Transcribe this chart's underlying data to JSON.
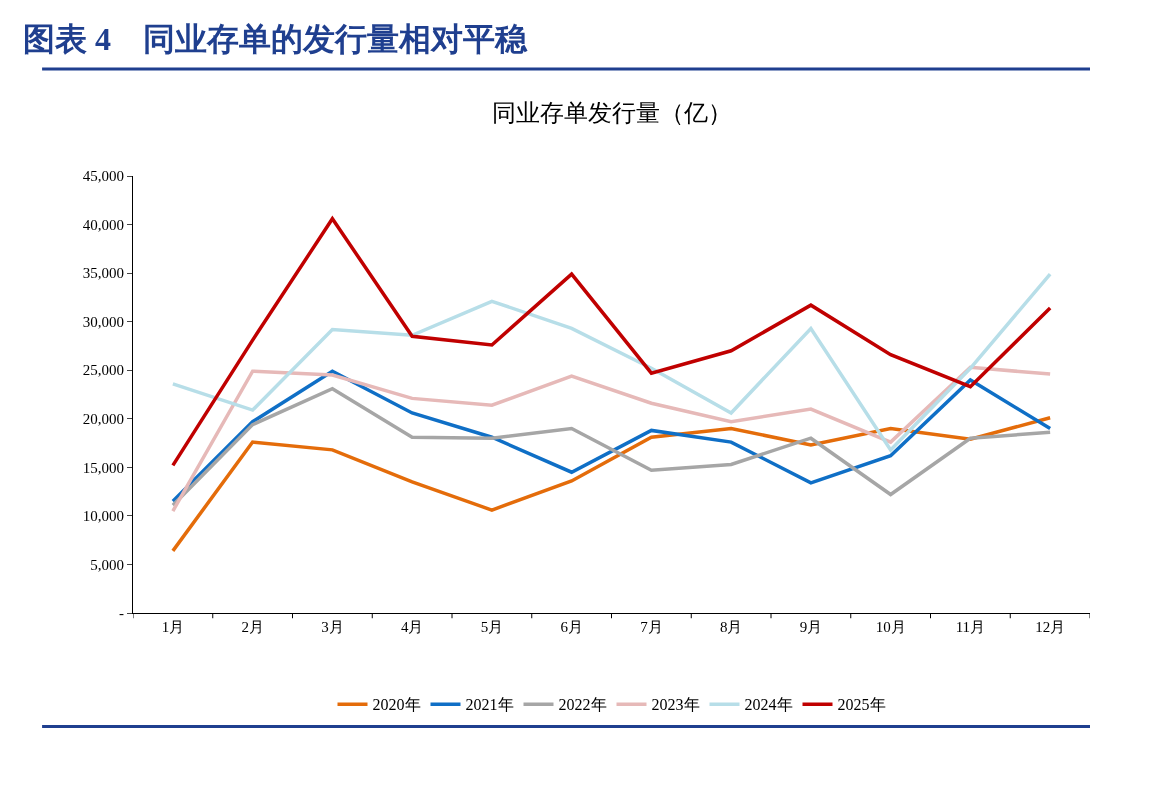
{
  "chart_data": {
    "type": "line",
    "title": "图表 4　同业存单的发行量相对平稳",
    "subtitle": "同业存单发行量（亿）",
    "categories": [
      "1月",
      "2月",
      "3月",
      "4月",
      "5月",
      "6月",
      "7月",
      "8月",
      "9月",
      "10月",
      "11月",
      "12月"
    ],
    "series": [
      {
        "name": "2020年",
        "color": "#e46c0a",
        "values": [
          6400,
          17600,
          16800,
          13500,
          10600,
          13600,
          18100,
          19000,
          17300,
          19000,
          17900,
          20100
        ]
      },
      {
        "name": "2021年",
        "color": "#0f6fc6",
        "values": [
          11500,
          19700,
          24900,
          20600,
          18100,
          14500,
          18800,
          17600,
          13400,
          16200,
          24000,
          19000
        ]
      },
      {
        "name": "2022年",
        "color": "#a6a6a6",
        "values": [
          11100,
          19400,
          23100,
          18100,
          18000,
          19000,
          14700,
          15300,
          18000,
          12200,
          18000,
          18600
        ]
      },
      {
        "name": "2023年",
        "color": "#e6b9b8",
        "values": [
          10500,
          24900,
          24500,
          22100,
          21400,
          24400,
          21600,
          19700,
          21000,
          17600,
          25300,
          24600
        ]
      },
      {
        "name": "2024年",
        "color": "#b7dee8",
        "values": [
          23600,
          20900,
          29200,
          28600,
          32100,
          29300,
          25200,
          20600,
          29300,
          16800,
          25200,
          34900
        ]
      },
      {
        "name": "2025年",
        "color": "#c00000",
        "values": [
          15200,
          28100,
          40600,
          28500,
          27600,
          34900,
          24700,
          27000,
          31700,
          26600,
          23300,
          31400
        ]
      }
    ],
    "ylim": [
      0,
      45000
    ],
    "yticks": [
      {
        "value": 0,
        "label": "-"
      },
      {
        "value": 5000,
        "label": "5,000"
      },
      {
        "value": 10000,
        "label": "10,000"
      },
      {
        "value": 15000,
        "label": "15,000"
      },
      {
        "value": 20000,
        "label": "20,000"
      },
      {
        "value": 25000,
        "label": "25,000"
      },
      {
        "value": 30000,
        "label": "30,000"
      },
      {
        "value": 35000,
        "label": "35,000"
      },
      {
        "value": 40000,
        "label": "40,000"
      },
      {
        "value": 45000,
        "label": "45,000"
      }
    ],
    "legend": "bottom",
    "marker": "none",
    "line_style": "solid"
  }
}
